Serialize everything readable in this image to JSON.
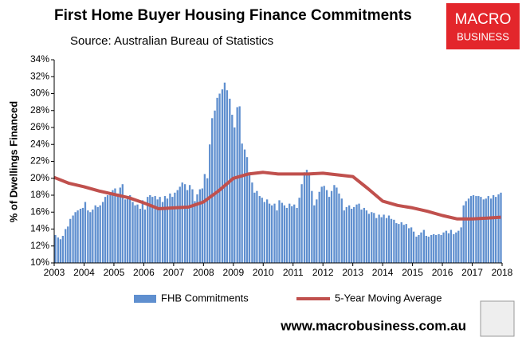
{
  "chart_data": {
    "type": "bar",
    "title": "First Home Buyer Housing Finance Commitments",
    "subtitle": "Source: Australian Bureau of Statistics",
    "y_label": "% of Dwellings Financed",
    "logo": [
      "MACRO",
      "BUSINESS"
    ],
    "footer": "www.macrobusiness.com.au",
    "xlim": [
      2003,
      2018
    ],
    "xticks": [
      2003,
      2004,
      2005,
      2006,
      2007,
      2008,
      2009,
      2010,
      2011,
      2012,
      2013,
      2014,
      2015,
      2016,
      2017,
      2018
    ],
    "ylim": [
      10,
      34
    ],
    "yticks": [
      {
        "value": 10,
        "label": "10%"
      },
      {
        "value": 12,
        "label": "12%"
      },
      {
        "value": 14,
        "label": "14%"
      },
      {
        "value": 16,
        "label": "16%"
      },
      {
        "value": 18,
        "label": "18%"
      },
      {
        "value": 20,
        "label": "20%"
      },
      {
        "value": 22,
        "label": "22%"
      },
      {
        "value": 24,
        "label": "24%"
      },
      {
        "value": 26,
        "label": "26%"
      },
      {
        "value": 28,
        "label": "28%"
      },
      {
        "value": 30,
        "label": "30%"
      },
      {
        "value": 32,
        "label": "32%"
      },
      {
        "value": 34,
        "label": "34%"
      }
    ],
    "grid": false,
    "series": [
      {
        "name": "FHB Commitments",
        "type": "bar",
        "color": "#5f8fcf",
        "x": [
          2003.04,
          2003.13,
          2003.21,
          2003.29,
          2003.38,
          2003.46,
          2003.54,
          2003.63,
          2003.71,
          2003.79,
          2003.88,
          2003.96,
          2004.04,
          2004.13,
          2004.21,
          2004.29,
          2004.38,
          2004.46,
          2004.54,
          2004.63,
          2004.71,
          2004.79,
          2004.88,
          2004.96,
          2005.04,
          2005.13,
          2005.21,
          2005.29,
          2005.38,
          2005.46,
          2005.54,
          2005.63,
          2005.71,
          2005.79,
          2005.88,
          2005.96,
          2006.04,
          2006.13,
          2006.21,
          2006.29,
          2006.38,
          2006.46,
          2006.54,
          2006.63,
          2006.71,
          2006.79,
          2006.88,
          2006.96,
          2007.04,
          2007.13,
          2007.21,
          2007.29,
          2007.38,
          2007.46,
          2007.54,
          2007.63,
          2007.71,
          2007.79,
          2007.88,
          2007.96,
          2008.04,
          2008.13,
          2008.21,
          2008.29,
          2008.38,
          2008.46,
          2008.54,
          2008.63,
          2008.71,
          2008.79,
          2008.88,
          2008.96,
          2009.04,
          2009.13,
          2009.21,
          2009.29,
          2009.38,
          2009.46,
          2009.54,
          2009.63,
          2009.71,
          2009.79,
          2009.88,
          2009.96,
          2010.04,
          2010.13,
          2010.21,
          2010.29,
          2010.38,
          2010.46,
          2010.54,
          2010.63,
          2010.71,
          2010.79,
          2010.88,
          2010.96,
          2011.04,
          2011.13,
          2011.21,
          2011.29,
          2011.38,
          2011.46,
          2011.54,
          2011.63,
          2011.71,
          2011.79,
          2011.88,
          2011.96,
          2012.04,
          2012.13,
          2012.21,
          2012.29,
          2012.38,
          2012.46,
          2012.54,
          2012.63,
          2012.71,
          2012.79,
          2012.88,
          2012.96,
          2013.04,
          2013.13,
          2013.21,
          2013.29,
          2013.38,
          2013.46,
          2013.54,
          2013.63,
          2013.71,
          2013.79,
          2013.88,
          2013.96,
          2014.04,
          2014.13,
          2014.21,
          2014.29,
          2014.38,
          2014.46,
          2014.54,
          2014.63,
          2014.71,
          2014.79,
          2014.88,
          2014.96,
          2015.04,
          2015.13,
          2015.21,
          2015.29,
          2015.38,
          2015.46,
          2015.54,
          2015.63,
          2015.71,
          2015.79,
          2015.88,
          2015.96,
          2016.04,
          2016.13,
          2016.21,
          2016.29,
          2016.38,
          2016.46,
          2016.54,
          2016.63,
          2016.71,
          2016.79,
          2016.88,
          2016.96,
          2017.04,
          2017.13,
          2017.21,
          2017.29,
          2017.38,
          2017.46,
          2017.54,
          2017.63,
          2017.71,
          2017.79,
          2017.88,
          2017.96
        ],
        "values": [
          13.3,
          13,
          12.8,
          13.2,
          14,
          14.3,
          15.2,
          15.6,
          16,
          16.2,
          16.4,
          16.5,
          17.2,
          16.2,
          16,
          16.3,
          16.8,
          16.6,
          16.8,
          17.2,
          17.8,
          18,
          18.3,
          18.6,
          18.8,
          18.2,
          18.9,
          19.3,
          17.5,
          17.9,
          18,
          17.2,
          16.8,
          16.9,
          16.4,
          17.4,
          16.3,
          17.8,
          18,
          17.8,
          17.9,
          17.5,
          17.8,
          17.2,
          17.9,
          17.6,
          18.2,
          17.8,
          18.3,
          18.6,
          19,
          19.5,
          19.3,
          18.6,
          19.2,
          18.7,
          17.3,
          18.1,
          18.7,
          18.8,
          20.5,
          20,
          24,
          27.1,
          28,
          29.5,
          30,
          30.5,
          31.3,
          30.4,
          29.4,
          27.5,
          26,
          28.4,
          28.5,
          24.1,
          23.4,
          22.5,
          20.5,
          19.5,
          18.3,
          18.5,
          17.9,
          17.7,
          17.2,
          17.5,
          17,
          16.8,
          17,
          16.2,
          17.4,
          17.1,
          16.8,
          16.5,
          17,
          16.7,
          16.9,
          16.5,
          17.7,
          19.3,
          20.7,
          21,
          20.5,
          18.5,
          16.8,
          17.5,
          18.4,
          19,
          19.1,
          18.6,
          17.8,
          18.5,
          19.2,
          18.9,
          18.2,
          17.6,
          16.2,
          16.6,
          16.8,
          16.4,
          16.6,
          16.9,
          17,
          16.3,
          16.5,
          16.2,
          15.8,
          16,
          15.9,
          15.3,
          15.7,
          15.4,
          15.7,
          15.3,
          15.6,
          15.2,
          15.1,
          14.7,
          14.6,
          14.8,
          14.5,
          14.6,
          14.1,
          14.2,
          13.7,
          13.1,
          13.3,
          13.6,
          13.9,
          13.2,
          13.1,
          13.3,
          13.4,
          13.3,
          13.4,
          13.3,
          13.6,
          13.8,
          13.5,
          13.9,
          13.4,
          13.6,
          13.8,
          14.2,
          16.8,
          17.3,
          17.6,
          17.9,
          18,
          17.9,
          17.9,
          17.8,
          17.5,
          17.6,
          17.9,
          17.6,
          18,
          17.8,
          18.1,
          18.3
        ]
      },
      {
        "name": "5-Year Moving Average",
        "type": "line",
        "color": "#c0504d",
        "x": [
          2003,
          2003.5,
          2004,
          2004.5,
          2005,
          2005.5,
          2006,
          2006.5,
          2007,
          2007.5,
          2008,
          2008.5,
          2009,
          2009.5,
          2010,
          2010.5,
          2011,
          2011.5,
          2012,
          2012.5,
          2013,
          2013.5,
          2014,
          2014.5,
          2015,
          2015.5,
          2016,
          2016.5,
          2017,
          2017.5,
          2017.96
        ],
        "values": [
          20.1,
          19.4,
          19,
          18.5,
          18.1,
          17.7,
          17.1,
          16.4,
          16.5,
          16.6,
          17.2,
          18.5,
          20,
          20.5,
          20.7,
          20.5,
          20.5,
          20.5,
          20.6,
          20.4,
          20.2,
          18.8,
          17.3,
          16.8,
          16.5,
          16.1,
          15.6,
          15.2,
          15.2,
          15.3,
          15.4
        ]
      }
    ]
  }
}
